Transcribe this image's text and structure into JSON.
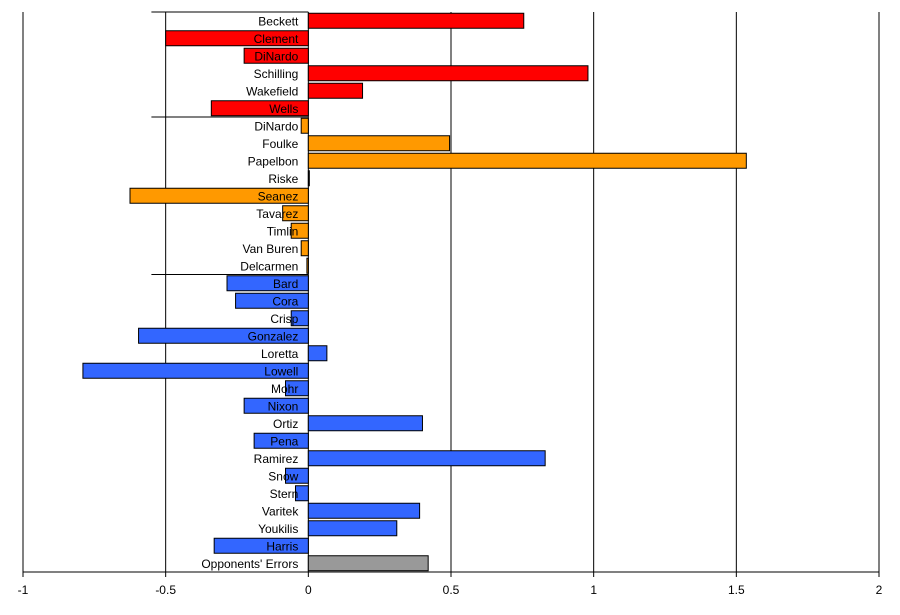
{
  "chart_data": {
    "type": "bar",
    "orientation": "horizontal",
    "grid": true,
    "xlim": [
      -1,
      2
    ],
    "x_ticks": [
      "-1",
      "-0.5",
      "0",
      "0.5",
      "1",
      "1.5",
      "2"
    ],
    "x_tick_values": [
      -1,
      -0.5,
      0,
      0.5,
      1,
      1.5,
      2
    ],
    "group_separators_after": [
      5,
      14,
      31
    ],
    "categories": [
      {
        "label": "Beckett",
        "value": 0.755,
        "color": "#ff0000"
      },
      {
        "label": "Clement",
        "value": -0.5,
        "color": "#ff0000"
      },
      {
        "label": "DiNardo",
        "value": -0.225,
        "color": "#ff0000"
      },
      {
        "label": "Schilling",
        "value": 0.98,
        "color": "#ff0000"
      },
      {
        "label": "Wakefield",
        "value": 0.19,
        "color": "#ff0000"
      },
      {
        "label": "Wells",
        "value": -0.34,
        "color": "#ff0000"
      },
      {
        "label": "DiNardo",
        "value": -0.025,
        "color": "#ff9900"
      },
      {
        "label": "Foulke",
        "value": 0.495,
        "color": "#ff9900"
      },
      {
        "label": "Papelbon",
        "value": 1.535,
        "color": "#ff9900"
      },
      {
        "label": "Riske",
        "value": 0.0,
        "color": "#ff9900"
      },
      {
        "label": "Seanez",
        "value": -0.625,
        "color": "#ff9900"
      },
      {
        "label": "Tavarez",
        "value": -0.09,
        "color": "#ff9900"
      },
      {
        "label": "Timlin",
        "value": -0.06,
        "color": "#ff9900"
      },
      {
        "label": "Van Buren",
        "value": -0.025,
        "color": "#ff9900"
      },
      {
        "label": "Delcarmen",
        "value": -0.005,
        "color": "#ff9900"
      },
      {
        "label": "Bard",
        "value": -0.285,
        "color": "#3366ff"
      },
      {
        "label": "Cora",
        "value": -0.255,
        "color": "#3366ff"
      },
      {
        "label": "Crisp",
        "value": -0.06,
        "color": "#3366ff"
      },
      {
        "label": "Gonzalez",
        "value": -0.595,
        "color": "#3366ff"
      },
      {
        "label": "Loretta",
        "value": 0.065,
        "color": "#3366ff"
      },
      {
        "label": "Lowell",
        "value": -0.79,
        "color": "#3366ff"
      },
      {
        "label": "Mohr",
        "value": -0.08,
        "color": "#3366ff"
      },
      {
        "label": "Nixon",
        "value": -0.225,
        "color": "#3366ff"
      },
      {
        "label": "Ortiz",
        "value": 0.4,
        "color": "#3366ff"
      },
      {
        "label": "Pena",
        "value": -0.19,
        "color": "#3366ff"
      },
      {
        "label": "Ramirez",
        "value": 0.83,
        "color": "#3366ff"
      },
      {
        "label": "Snow",
        "value": -0.08,
        "color": "#3366ff"
      },
      {
        "label": "Stern",
        "value": -0.045,
        "color": "#3366ff"
      },
      {
        "label": "Varitek",
        "value": 0.39,
        "color": "#3366ff"
      },
      {
        "label": "Youkilis",
        "value": 0.31,
        "color": "#3366ff"
      },
      {
        "label": "Harris",
        "value": -0.33,
        "color": "#3366ff"
      },
      {
        "label": "Opponents' Errors",
        "value": 0.42,
        "color": "#999999"
      }
    ]
  }
}
